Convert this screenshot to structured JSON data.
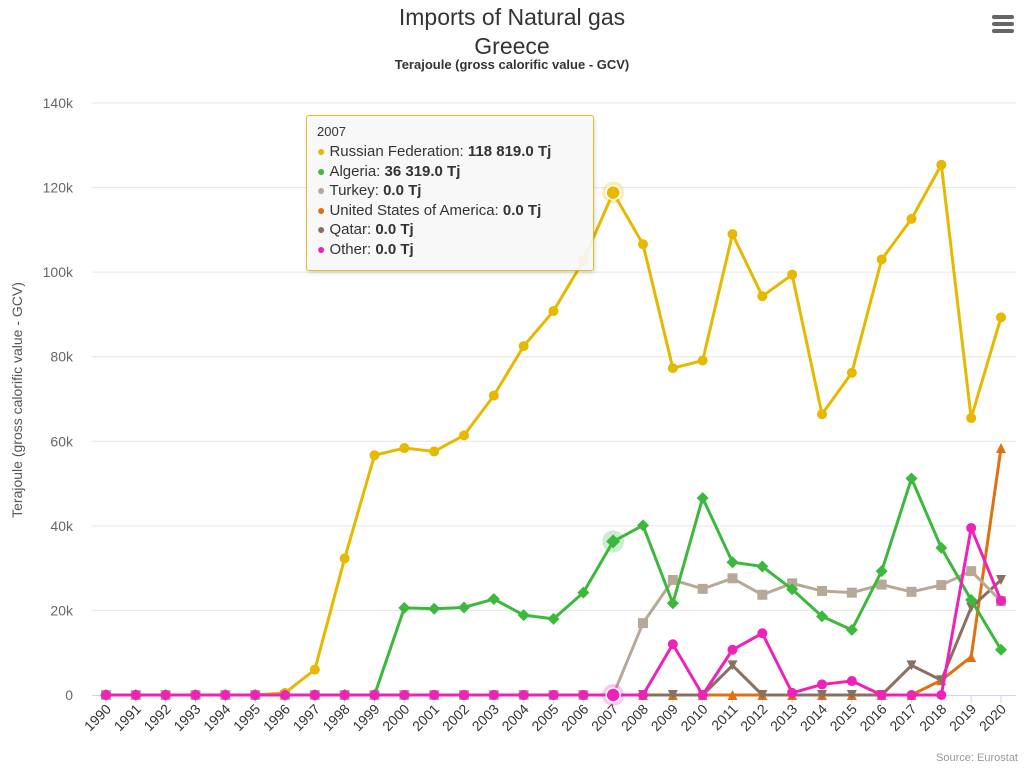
{
  "title": "Imports of Natural gas",
  "subtitle_country": "Greece",
  "unit_subtitle": "Terajoule (gross calorific value - GCV)",
  "source_label": "Source: Eurostat",
  "menu": {
    "icon": "hamburger-menu-icon"
  },
  "tooltip": {
    "year": "2007",
    "rows": [
      {
        "label": "Russian Federation:",
        "value": "118 819.0 Tj",
        "color": "#e6b800"
      },
      {
        "label": "Algeria:",
        "value": "36 319.0 Tj",
        "color": "#3cb93c"
      },
      {
        "label": "Turkey:",
        "value": "0.0 Tj",
        "color": "#b8a898"
      },
      {
        "label": "United States of America:",
        "value": "0.0 Tj",
        "color": "#e07010"
      },
      {
        "label": "Qatar:",
        "value": "0.0 Tj",
        "color": "#8a7060"
      },
      {
        "label": "Other:",
        "value": "0.0 Tj",
        "color": "#ee22bb"
      }
    ]
  },
  "chart_data": {
    "type": "line",
    "title": "Imports of Natural gas",
    "subtitle": "Greece",
    "ylabel": "Terajoule (gross calorific value - GCV)",
    "xlabel": "",
    "ylim": [
      0,
      140000
    ],
    "yticks": [
      0,
      20000,
      40000,
      60000,
      80000,
      100000,
      120000,
      140000
    ],
    "ytick_labels": [
      "0",
      "20k",
      "40k",
      "60k",
      "80k",
      "100k",
      "120k",
      "140k"
    ],
    "grid": true,
    "legend": "none",
    "highlighted_category": "2007",
    "categories": [
      "1990",
      "1991",
      "1992",
      "1993",
      "1994",
      "1995",
      "1996",
      "1997",
      "1998",
      "1999",
      "2000",
      "2001",
      "2002",
      "2003",
      "2004",
      "2005",
      "2006",
      "2007",
      "2008",
      "2009",
      "2010",
      "2011",
      "2012",
      "2013",
      "2014",
      "2015",
      "2016",
      "2017",
      "2018",
      "2019",
      "2020"
    ],
    "series": [
      {
        "name": "Russian Federation",
        "color": "#e6b800",
        "marker": "circle",
        "values": [
          0,
          0,
          0,
          0,
          0,
          0,
          500,
          6000,
          32300,
          56700,
          58400,
          57600,
          61400,
          70800,
          82500,
          90800,
          102700,
          118819,
          106600,
          77300,
          79100,
          109000,
          94300,
          99400,
          66400,
          76200,
          103000,
          112600,
          125400,
          65500,
          89300
        ]
      },
      {
        "name": "Algeria",
        "color": "#3cb93c",
        "marker": "diamond",
        "values": [
          0,
          0,
          0,
          0,
          0,
          0,
          0,
          0,
          0,
          0,
          20600,
          20400,
          20700,
          22700,
          18900,
          18000,
          24200,
          36319,
          40100,
          21700,
          46600,
          31400,
          30400,
          25000,
          18600,
          15400,
          29300,
          51200,
          34800,
          22500,
          10700
        ]
      },
      {
        "name": "Turkey",
        "color": "#b8a898",
        "marker": "square",
        "values": [
          0,
          0,
          0,
          0,
          0,
          0,
          0,
          0,
          0,
          0,
          0,
          0,
          0,
          0,
          0,
          0,
          0,
          0,
          17000,
          27200,
          25100,
          27600,
          23700,
          26400,
          24600,
          24200,
          26100,
          24400,
          26000,
          29300,
          22200
        ]
      },
      {
        "name": "United States of America",
        "color": "#e07010",
        "marker": "triangle-up",
        "values": [
          0,
          0,
          0,
          0,
          0,
          0,
          0,
          0,
          0,
          0,
          0,
          0,
          0,
          0,
          0,
          0,
          0,
          0,
          0,
          0,
          0,
          0,
          0,
          0,
          0,
          0,
          0,
          0,
          3500,
          9000,
          58400
        ]
      },
      {
        "name": "Qatar",
        "color": "#8a7060",
        "marker": "triangle-down",
        "values": [
          0,
          0,
          0,
          0,
          0,
          0,
          0,
          0,
          0,
          0,
          0,
          0,
          0,
          0,
          0,
          0,
          0,
          0,
          0,
          0,
          0,
          7000,
          0,
          0,
          0,
          0,
          0,
          7000,
          3500,
          20700,
          27200
        ]
      },
      {
        "name": "Other",
        "color": "#ee22bb",
        "marker": "circle",
        "values": [
          0,
          0,
          0,
          0,
          0,
          0,
          0,
          0,
          0,
          0,
          0,
          0,
          0,
          0,
          0,
          0,
          0,
          0,
          0,
          12000,
          0,
          10700,
          14600,
          500,
          2500,
          3300,
          0,
          0,
          0,
          39500,
          22300
        ]
      }
    ]
  }
}
